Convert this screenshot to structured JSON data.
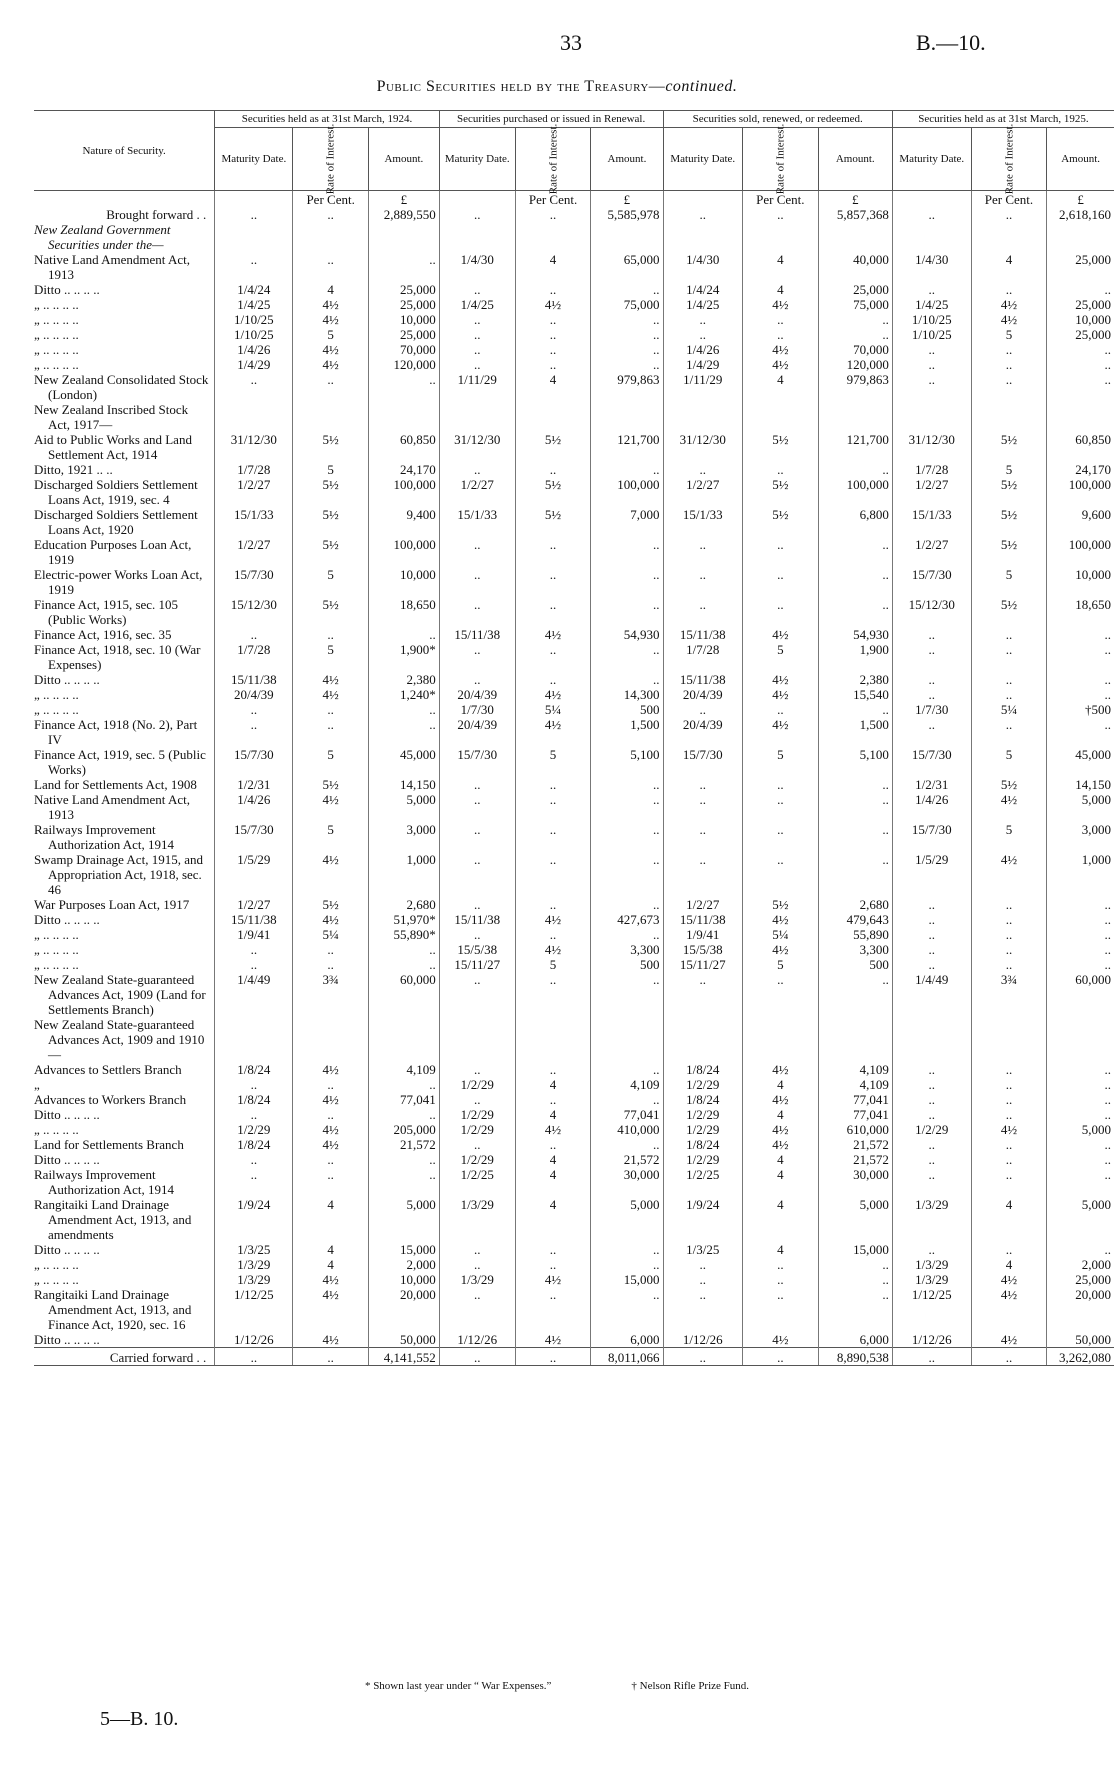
{
  "header": {
    "page_number": "33",
    "reference": "B.—10.",
    "title": "Public Securities held by the Treasury—",
    "title_italic": "continued."
  },
  "table": {
    "nature_header": "Nature of Security.",
    "column_groups": [
      "Securities held as at 31st March, 1924.",
      "Securities purchased or issued in Renewal.",
      "Securities sold, renewed, or redeemed.",
      "Securities held as at 31st March, 1925."
    ],
    "sub_headers": [
      "Maturity Date.",
      "Rate of Interest.",
      "Amount."
    ],
    "units": [
      "Per Cent.",
      "£"
    ],
    "rows": [
      {
        "label": "Brought forward . .",
        "cells": [
          "..",
          "..",
          "2,889,550",
          "..",
          "..",
          "5,585,978",
          "..",
          "..",
          "5,857,368",
          "..",
          "..",
          "2,618,160"
        ]
      },
      {
        "heading": "New Zealand Government Securities under the—"
      },
      {
        "label": "Native Land Amendment Act, 1913",
        "cells": [
          "..",
          "..",
          "..",
          "1/4/30",
          "4",
          "65,000",
          "1/4/30",
          "4",
          "40,000",
          "1/4/30",
          "4",
          "25,000"
        ]
      },
      {
        "label": "Ditto .. .. .. ..",
        "cells": [
          "1/4/24",
          "4",
          "25,000",
          "..",
          "..",
          "..",
          "1/4/24",
          "4",
          "25,000",
          "..",
          "..",
          ".."
        ]
      },
      {
        "label": "„ .. .. .. ..",
        "cells": [
          "1/4/25",
          "4½",
          "25,000",
          "1/4/25",
          "4½",
          "75,000",
          "1/4/25",
          "4½",
          "75,000",
          "1/4/25",
          "4½",
          "25,000"
        ]
      },
      {
        "label": "„ .. .. .. ..",
        "cells": [
          "1/10/25",
          "4½",
          "10,000",
          "..",
          "..",
          "..",
          "..",
          "..",
          "..",
          "1/10/25",
          "4½",
          "10,000"
        ]
      },
      {
        "label": "„ .. .. .. ..",
        "cells": [
          "1/10/25",
          "5",
          "25,000",
          "..",
          "..",
          "..",
          "..",
          "..",
          "..",
          "1/10/25",
          "5",
          "25,000"
        ]
      },
      {
        "label": "„ .. .. .. ..",
        "cells": [
          "1/4/26",
          "4½",
          "70,000",
          "..",
          "..",
          "..",
          "1/4/26",
          "4½",
          "70,000",
          "..",
          "..",
          ".."
        ]
      },
      {
        "label": "„ .. .. .. ..",
        "cells": [
          "1/4/29",
          "4½",
          "120,000",
          "..",
          "..",
          "..",
          "1/4/29",
          "4½",
          "120,000",
          "..",
          "..",
          ".."
        ]
      },
      {
        "label": "New Zealand Consolidated Stock (London)",
        "cells": [
          "..",
          "..",
          "..",
          "1/11/29",
          "4",
          "979,863",
          "1/11/29",
          "4",
          "979,863",
          "..",
          "..",
          ".."
        ]
      },
      {
        "label": "New Zealand Inscribed Stock Act, 1917—"
      },
      {
        "label": "Aid to Public Works and Land Settlement Act, 1914",
        "cells": [
          "31/12/30",
          "5½",
          "60,850",
          "31/12/30",
          "5½",
          "121,700",
          "31/12/30",
          "5½",
          "121,700",
          "31/12/30",
          "5½",
          "60,850"
        ]
      },
      {
        "label": "Ditto, 1921 .. ..",
        "cells": [
          "1/7/28",
          "5",
          "24,170",
          "..",
          "..",
          "..",
          "..",
          "..",
          "..",
          "1/7/28",
          "5",
          "24,170"
        ]
      },
      {
        "label": "Discharged Soldiers Settlement Loans Act, 1919, sec. 4",
        "cells": [
          "1/2/27",
          "5½",
          "100,000",
          "1/2/27",
          "5½",
          "100,000",
          "1/2/27",
          "5½",
          "100,000",
          "1/2/27",
          "5½",
          "100,000"
        ]
      },
      {
        "label": "Discharged Soldiers Settlement Loans Act, 1920",
        "cells": [
          "15/1/33",
          "5½",
          "9,400",
          "15/1/33",
          "5½",
          "7,000",
          "15/1/33",
          "5½",
          "6,800",
          "15/1/33",
          "5½",
          "9,600"
        ]
      },
      {
        "label": "Education Purposes Loan Act, 1919",
        "cells": [
          "1/2/27",
          "5½",
          "100,000",
          "..",
          "..",
          "..",
          "..",
          "..",
          "..",
          "1/2/27",
          "5½",
          "100,000"
        ]
      },
      {
        "label": "Electric-power Works Loan Act, 1919",
        "cells": [
          "15/7/30",
          "5",
          "10,000",
          "..",
          "..",
          "..",
          "..",
          "..",
          "..",
          "15/7/30",
          "5",
          "10,000"
        ]
      },
      {
        "label": "Finance Act, 1915, sec. 105 (Public Works)",
        "cells": [
          "15/12/30",
          "5½",
          "18,650",
          "..",
          "..",
          "..",
          "..",
          "..",
          "..",
          "15/12/30",
          "5½",
          "18,650"
        ]
      },
      {
        "label": "Finance Act, 1916, sec. 35",
        "cells": [
          "..",
          "..",
          "..",
          "15/11/38",
          "4½",
          "54,930",
          "15/11/38",
          "4½",
          "54,930",
          "..",
          "..",
          ".."
        ]
      },
      {
        "label": "Finance Act, 1918, sec. 10 (War Expenses)",
        "cells": [
          "1/7/28",
          "5",
          "1,900*",
          "..",
          "..",
          "..",
          "1/7/28",
          "5",
          "1,900",
          "..",
          "..",
          ".."
        ]
      },
      {
        "label": "Ditto .. .. .. ..",
        "cells": [
          "15/11/38",
          "4½",
          "2,380",
          "..",
          "..",
          "..",
          "15/11/38",
          "4½",
          "2,380",
          "..",
          "..",
          ".."
        ]
      },
      {
        "label": "„ .. .. .. ..",
        "cells": [
          "20/4/39",
          "4½",
          "1,240*",
          "20/4/39",
          "4½",
          "14,300",
          "20/4/39",
          "4½",
          "15,540",
          "..",
          "..",
          ".."
        ]
      },
      {
        "label": "„ .. .. .. ..",
        "cells": [
          "..",
          "..",
          "..",
          "1/7/30",
          "5¼",
          "500",
          "..",
          "..",
          "..",
          "1/7/30",
          "5¼",
          "†500"
        ]
      },
      {
        "label": "Finance Act, 1918 (No. 2), Part IV",
        "cells": [
          "..",
          "..",
          "..",
          "20/4/39",
          "4½",
          "1,500",
          "20/4/39",
          "4½",
          "1,500",
          "..",
          "..",
          ".."
        ]
      },
      {
        "label": "Finance Act, 1919, sec. 5 (Public Works)",
        "cells": [
          "15/7/30",
          "5",
          "45,000",
          "15/7/30",
          "5",
          "5,100",
          "15/7/30",
          "5",
          "5,100",
          "15/7/30",
          "5",
          "45,000"
        ]
      },
      {
        "label": "Land for Settlements Act, 1908",
        "cells": [
          "1/2/31",
          "5½",
          "14,150",
          "..",
          "..",
          "..",
          "..",
          "..",
          "..",
          "1/2/31",
          "5½",
          "14,150"
        ]
      },
      {
        "label": "Native Land Amendment Act, 1913",
        "cells": [
          "1/4/26",
          "4½",
          "5,000",
          "..",
          "..",
          "..",
          "..",
          "..",
          "..",
          "1/4/26",
          "4½",
          "5,000"
        ]
      },
      {
        "label": "Railways Improvement Authorization Act, 1914",
        "cells": [
          "15/7/30",
          "5",
          "3,000",
          "..",
          "..",
          "..",
          "..",
          "..",
          "..",
          "15/7/30",
          "5",
          "3,000"
        ]
      },
      {
        "label": "Swamp Drainage Act, 1915, and Appropriation Act, 1918, sec. 46",
        "cells": [
          "1/5/29",
          "4½",
          "1,000",
          "..",
          "..",
          "..",
          "..",
          "..",
          "..",
          "1/5/29",
          "4½",
          "1,000"
        ]
      },
      {
        "label": "War Purposes Loan Act, 1917",
        "cells": [
          "1/2/27",
          "5½",
          "2,680",
          "..",
          "..",
          "..",
          "1/2/27",
          "5½",
          "2,680",
          "..",
          "..",
          ".."
        ]
      },
      {
        "label": "Ditto .. .. .. ..",
        "cells": [
          "15/11/38",
          "4½",
          "51,970*",
          "15/11/38",
          "4½",
          "427,673",
          "15/11/38",
          "4½",
          "479,643",
          "..",
          "..",
          ".."
        ]
      },
      {
        "label": "„ .. .. .. ..",
        "cells": [
          "1/9/41",
          "5¼",
          "55,890*",
          "..",
          "..",
          "..",
          "1/9/41",
          "5¼",
          "55,890",
          "..",
          "..",
          ".."
        ]
      },
      {
        "label": "„ .. .. .. ..",
        "cells": [
          "..",
          "..",
          "..",
          "15/5/38",
          "4½",
          "3,300",
          "15/5/38",
          "4½",
          "3,300",
          "..",
          "..",
          ".."
        ]
      },
      {
        "label": "„ .. .. .. ..",
        "cells": [
          "..",
          "..",
          "..",
          "15/11/27",
          "5",
          "500",
          "15/11/27",
          "5",
          "500",
          "..",
          "..",
          ".."
        ]
      },
      {
        "label": "New Zealand State-guaranteed Advances Act, 1909 (Land for Settlements Branch)",
        "cells": [
          "1/4/49",
          "3¾",
          "60,000",
          "..",
          "..",
          "..",
          "..",
          "..",
          "..",
          "1/4/49",
          "3¾",
          "60,000"
        ]
      },
      {
        "label": "New Zealand State-guaranteed Advances Act, 1909 and 1910—"
      },
      {
        "label": "Advances to Settlers Branch",
        "cells": [
          "1/8/24",
          "4½",
          "4,109",
          "..",
          "..",
          "..",
          "1/8/24",
          "4½",
          "4,109",
          "..",
          "..",
          ".."
        ]
      },
      {
        "label": "„",
        "cells": [
          "..",
          "..",
          "..",
          "1/2/29",
          "4",
          "4,109",
          "1/2/29",
          "4",
          "4,109",
          "..",
          "..",
          ".."
        ]
      },
      {
        "label": "Advances to Workers Branch",
        "cells": [
          "1/8/24",
          "4½",
          "77,041",
          "..",
          "..",
          "..",
          "1/8/24",
          "4½",
          "77,041",
          "..",
          "..",
          ".."
        ]
      },
      {
        "label": "Ditto .. .. .. ..",
        "cells": [
          "..",
          "..",
          "..",
          "1/2/29",
          "4",
          "77,041",
          "1/2/29",
          "4",
          "77,041",
          "..",
          "..",
          ".."
        ]
      },
      {
        "label": "„ .. .. .. ..",
        "cells": [
          "1/2/29",
          "4½",
          "205,000",
          "1/2/29",
          "4½",
          "410,000",
          "1/2/29",
          "4½",
          "610,000",
          "1/2/29",
          "4½",
          "5,000"
        ]
      },
      {
        "label": "Land for Settlements Branch",
        "cells": [
          "1/8/24",
          "4½",
          "21,572",
          "..",
          "..",
          "..",
          "1/8/24",
          "4½",
          "21,572",
          "..",
          "..",
          ".."
        ]
      },
      {
        "label": "Ditto .. .. .. ..",
        "cells": [
          "..",
          "..",
          "..",
          "1/2/29",
          "4",
          "21,572",
          "1/2/29",
          "4",
          "21,572",
          "..",
          "..",
          ".."
        ]
      },
      {
        "label": "Railways Improvement Authorization Act, 1914",
        "cells": [
          "..",
          "..",
          "..",
          "1/2/25",
          "4",
          "30,000",
          "1/2/25",
          "4",
          "30,000",
          "..",
          "..",
          ".."
        ]
      },
      {
        "label": "Rangitaiki Land Drainage Amendment Act, 1913, and amendments",
        "cells": [
          "1/9/24",
          "4",
          "5,000",
          "1/3/29",
          "4",
          "5,000",
          "1/9/24",
          "4",
          "5,000",
          "1/3/29",
          "4",
          "5,000"
        ]
      },
      {
        "label": "Ditto .. .. .. ..",
        "cells": [
          "1/3/25",
          "4",
          "15,000",
          "..",
          "..",
          "..",
          "1/3/25",
          "4",
          "15,000",
          "..",
          "..",
          ".."
        ]
      },
      {
        "label": "„ .. .. .. ..",
        "cells": [
          "1/3/29",
          "4",
          "2,000",
          "..",
          "..",
          "..",
          "..",
          "..",
          "..",
          "1/3/29",
          "4",
          "2,000"
        ]
      },
      {
        "label": "„ .. .. .. ..",
        "cells": [
          "1/3/29",
          "4½",
          "10,000",
          "1/3/29",
          "4½",
          "15,000",
          "..",
          "..",
          "..",
          "1/3/29",
          "4½",
          "25,000"
        ]
      },
      {
        "label": "Rangitaiki Land Drainage Amendment Act, 1913, and Finance Act, 1920, sec. 16",
        "cells": [
          "1/12/25",
          "4½",
          "20,000",
          "..",
          "..",
          "..",
          "..",
          "..",
          "..",
          "1/12/25",
          "4½",
          "20,000"
        ]
      },
      {
        "label": "Ditto .. .. .. ..",
        "cells": [
          "1/12/26",
          "4½",
          "50,000",
          "1/12/26",
          "4½",
          "6,000",
          "1/12/26",
          "4½",
          "6,000",
          "1/12/26",
          "4½",
          "50,000"
        ]
      },
      {
        "label": "Carried forward . .",
        "cells": [
          "..",
          "..",
          "4,141,552",
          "..",
          "..",
          "8,011,066",
          "..",
          "..",
          "8,890,538",
          "..",
          "..",
          "3,262,080"
        ]
      }
    ]
  },
  "footnotes": [
    "* Shown last year under “ War Expenses.”",
    "† Nelson Rifle Prize Fund."
  ],
  "footer": "5—B. 10."
}
